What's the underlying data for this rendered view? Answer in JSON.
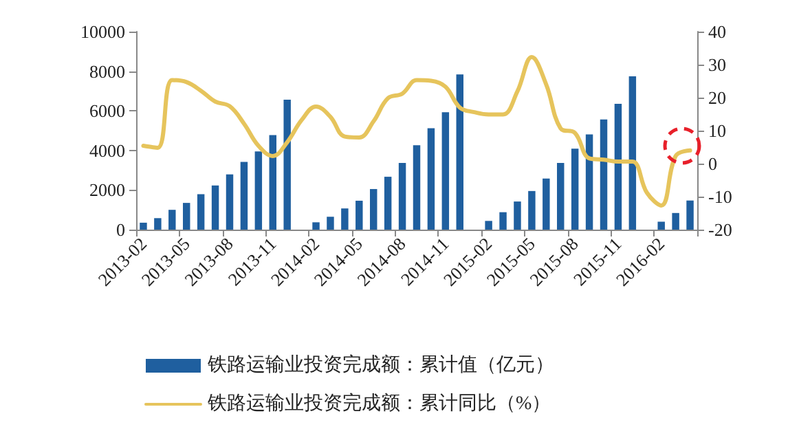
{
  "chart_data": {
    "type": "bar",
    "categories": [
      "2013-02",
      null,
      null,
      "2013-05",
      null,
      null,
      "2013-08",
      null,
      null,
      "2013-11",
      null,
      null,
      "2014-02",
      null,
      null,
      "2014-05",
      null,
      null,
      "2014-08",
      null,
      null,
      "2014-11",
      null,
      null,
      "2015-02",
      null,
      null,
      "2015-05",
      null,
      null,
      "2015-08",
      null,
      null,
      "2015-11",
      null,
      null,
      "2016-02",
      null,
      null
    ],
    "series": [
      {
        "name": "铁路运输业投资完成额：累计值（亿元）",
        "color": "#1f5f9f",
        "values": [
          350,
          580,
          1000,
          1350,
          1790,
          2230,
          2790,
          3420,
          3950,
          4770,
          6560,
          null,
          370,
          650,
          1070,
          1460,
          2050,
          2670,
          3370,
          4260,
          5120,
          5930,
          7840,
          null,
          440,
          880,
          1420,
          1950,
          2580,
          3370,
          4090,
          4810,
          5560,
          6350,
          7740,
          null,
          400,
          840,
          1470
        ]
      },
      {
        "name": "铁路运输业投资完成额：累计同比（%）",
        "type": "line",
        "axis": "y2",
        "color": "#e6c45c",
        "values": [
          5.4,
          4.8,
          25.3,
          24.7,
          22.1,
          18.8,
          17.4,
          12.1,
          5.4,
          2.3,
          6.5,
          13.2,
          17.3,
          14.2,
          8.2,
          7.9,
          12.8,
          19.8,
          21.2,
          25.3,
          25.1,
          23.3,
          17,
          15.6,
          14.9,
          14.9,
          21.9,
          32.3,
          24,
          10.7,
          9.3,
          1.6,
          1.2,
          0.6,
          0.6,
          -8.8,
          -12.7,
          2.3,
          4
        ]
      }
    ],
    "ylim": [
      0,
      10000
    ],
    "yticks": [
      0,
      2000,
      4000,
      6000,
      8000,
      10000
    ],
    "y2lim": [
      -20,
      40
    ],
    "y2ticks": [
      -20,
      -10,
      0,
      10,
      20,
      30,
      40
    ],
    "grid": false,
    "legend": "bottom",
    "marker": "none",
    "line_style": "solid"
  }
}
